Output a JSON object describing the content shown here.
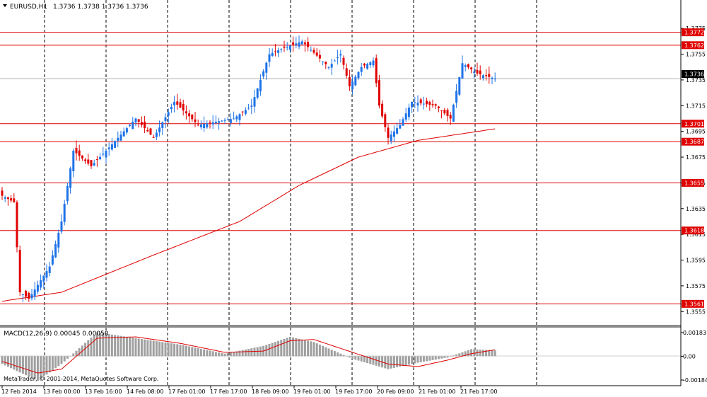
{
  "colors": {
    "background": "#ffffff",
    "axis": "#000000",
    "grid": "#000000",
    "bull": "#1e73e8",
    "bear": "#e00000",
    "level_line": "#e00000",
    "level_label_bg": "#e00000",
    "price_label_bg": "#000000",
    "ma_line": "#e00000",
    "macd_hist": "#a0a0a0",
    "macd_signal": "#e00000",
    "separator": "#8c8c8c"
  },
  "header": {
    "arrow_icon": "triangle-down-icon",
    "symbol": "EURUSD,H1",
    "ohlc": "1.3736 1.3738 1.3736 1.3736"
  },
  "price_scale": {
    "ticks": [
      "1.3775",
      "1.3755",
      "1.3735",
      "1.3715",
      "1.3695",
      "1.3675",
      "1.3655",
      "1.3635",
      "1.3615",
      "1.3595",
      "1.3575",
      "1.3555"
    ],
    "current_price": "1.3736"
  },
  "levels": [
    "1.3772",
    "1.3762",
    "1.3701",
    "1.3687",
    "1.3655",
    "1.3618",
    "1.3561"
  ],
  "macd": {
    "label": "MACD(12,26,9) 0.00045 0.00050",
    "ticks": [
      "0.00183",
      "0.00",
      "-0.00184"
    ]
  },
  "copyright": "MetaTrader, © 2001-2014, MetaQuotes Software Corp.",
  "time_axis": {
    "labels": [
      "12 Feb 2014",
      "13 Feb 00:00",
      "13 Feb 16:00",
      "14 Feb 08:00",
      "17 Feb 01:00",
      "17 Feb 17:00",
      "18 Feb 09:00",
      "19 Feb 01:00",
      "19 Feb 17:00",
      "20 Feb 09:00",
      "21 Feb 01:00",
      "21 Feb 17:00"
    ]
  },
  "chart_data": {
    "type": "candlestick",
    "symbol": "EURUSD",
    "timeframe": "H1",
    "y_range": [
      1.3548,
      1.3785
    ],
    "bars_total": 167,
    "key_points": [
      {
        "bar": 0,
        "price": 1.3645
      },
      {
        "bar": 4,
        "price": 1.364
      },
      {
        "bar": 6,
        "price": 1.357
      },
      {
        "bar": 9,
        "price": 1.3565
      },
      {
        "bar": 16,
        "price": 1.359
      },
      {
        "bar": 20,
        "price": 1.3625
      },
      {
        "bar": 24,
        "price": 1.368
      },
      {
        "bar": 30,
        "price": 1.3668
      },
      {
        "bar": 35,
        "price": 1.368
      },
      {
        "bar": 45,
        "price": 1.3705
      },
      {
        "bar": 51,
        "price": 1.369
      },
      {
        "bar": 58,
        "price": 1.3718
      },
      {
        "bar": 66,
        "price": 1.37
      },
      {
        "bar": 78,
        "price": 1.3705
      },
      {
        "bar": 84,
        "price": 1.3715
      },
      {
        "bar": 90,
        "price": 1.3755
      },
      {
        "bar": 95,
        "price": 1.376
      },
      {
        "bar": 101,
        "price": 1.3765
      },
      {
        "bar": 110,
        "price": 1.3745
      },
      {
        "bar": 114,
        "price": 1.3755
      },
      {
        "bar": 117,
        "price": 1.373
      },
      {
        "bar": 121,
        "price": 1.3745
      },
      {
        "bar": 125,
        "price": 1.375
      },
      {
        "bar": 127,
        "price": 1.3715
      },
      {
        "bar": 130,
        "price": 1.369
      },
      {
        "bar": 134,
        "price": 1.37
      },
      {
        "bar": 138,
        "price": 1.3718
      },
      {
        "bar": 146,
        "price": 1.3715
      },
      {
        "bar": 151,
        "price": 1.3705
      },
      {
        "bar": 155,
        "price": 1.3748
      },
      {
        "bar": 160,
        "price": 1.374
      },
      {
        "bar": 163,
        "price": 1.3738
      },
      {
        "bar": 166,
        "price": 1.3736
      }
    ],
    "moving_average": [
      {
        "bar": 0,
        "price": 1.3563
      },
      {
        "bar": 20,
        "price": 1.357
      },
      {
        "bar": 50,
        "price": 1.3598
      },
      {
        "bar": 80,
        "price": 1.3625
      },
      {
        "bar": 100,
        "price": 1.3653
      },
      {
        "bar": 120,
        "price": 1.3675
      },
      {
        "bar": 140,
        "price": 1.3688
      },
      {
        "bar": 166,
        "price": 1.3697
      }
    ],
    "macd_range": [
      -0.00184,
      0.00183
    ],
    "macd_key_points": [
      {
        "bar": 0,
        "hist": -0.0006,
        "signal": -0.0004
      },
      {
        "bar": 12,
        "hist": -0.0019,
        "signal": -0.0013
      },
      {
        "bar": 20,
        "hist": -0.0006,
        "signal": -0.001
      },
      {
        "bar": 32,
        "hist": 0.00185,
        "signal": 0.0014
      },
      {
        "bar": 45,
        "hist": 0.0014,
        "signal": 0.0015
      },
      {
        "bar": 60,
        "hist": 0.0009,
        "signal": 0.001
      },
      {
        "bar": 75,
        "hist": 0.0002,
        "signal": 0.0003
      },
      {
        "bar": 88,
        "hist": 0.0008,
        "signal": 0.0004
      },
      {
        "bar": 97,
        "hist": 0.0015,
        "signal": 0.0012
      },
      {
        "bar": 105,
        "hist": 0.0011,
        "signal": 0.0013
      },
      {
        "bar": 118,
        "hist": -0.0002,
        "signal": 0.0003
      },
      {
        "bar": 130,
        "hist": -0.001,
        "signal": -0.0006
      },
      {
        "bar": 140,
        "hist": -0.0005,
        "signal": -0.0008
      },
      {
        "bar": 150,
        "hist": -0.0001,
        "signal": -0.0003
      },
      {
        "bar": 158,
        "hist": 0.00055,
        "signal": 0.0002
      },
      {
        "bar": 166,
        "hist": 0.00045,
        "signal": 0.0005
      }
    ]
  }
}
